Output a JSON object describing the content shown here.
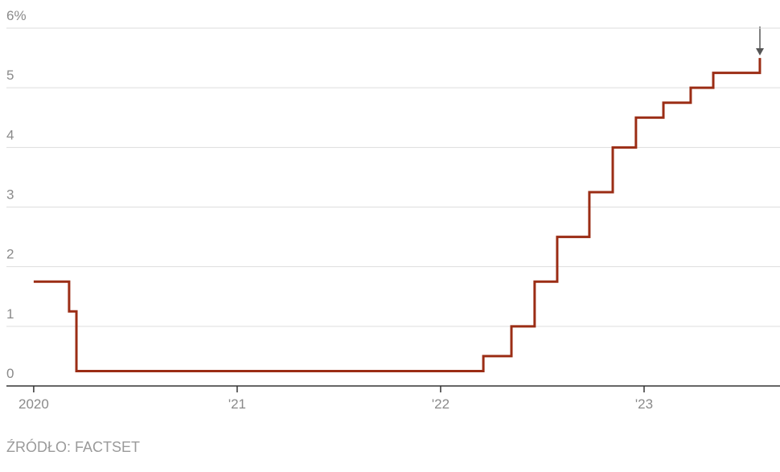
{
  "chart_data": {
    "type": "line",
    "x": [
      2020,
      2020.174,
      2020.174,
      2020.21,
      2020.21,
      2022.21,
      2022.21,
      2022.348,
      2022.348,
      2022.462,
      2022.462,
      2022.573,
      2022.573,
      2022.731,
      2022.731,
      2022.846,
      2022.846,
      2022.96,
      2022.96,
      2023.095,
      2023.095,
      2023.229,
      2023.229,
      2023.34,
      2023.34,
      2023.569,
      2023.569
    ],
    "series": [
      {
        "color": "#9b2d15",
        "values": [
          1.75,
          1.75,
          1.25,
          1.25,
          0.25,
          0.25,
          0.5,
          0.5,
          1.0,
          1.0,
          1.75,
          1.75,
          2.5,
          2.5,
          3.25,
          3.25,
          4.0,
          4.0,
          4.5,
          4.5,
          4.75,
          4.75,
          5.0,
          5.0,
          5.25,
          5.25,
          5.5
        ]
      }
    ],
    "xlim": [
      2019.866,
      2023.668
    ],
    "xticks": [
      2020,
      {
        "value": 2021,
        "label": "'21"
      },
      {
        "value": 2022,
        "label": "'22"
      },
      {
        "value": 2023,
        "label": "'23"
      }
    ],
    "ylim": [
      0,
      6
    ],
    "yticks": [
      0,
      1,
      2,
      3,
      4,
      5,
      {
        "value": 6,
        "label": "6%"
      }
    ],
    "grid": true,
    "source": "ŹRÓDŁO: FACTSET"
  }
}
